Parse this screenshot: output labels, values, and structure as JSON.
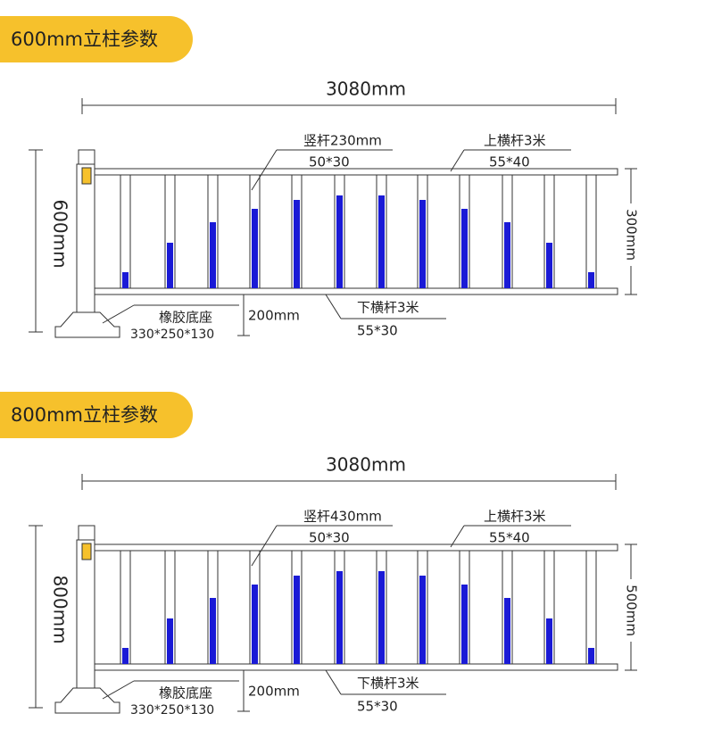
{
  "panels": [
    {
      "header": "600mm立柱参数",
      "width_label": "3080mm",
      "height_label": "600mm",
      "inner_height_label": "300mm",
      "vertical_bar": {
        "label": "竖杆230mm",
        "size": "50*30"
      },
      "top_rail": {
        "label": "上横杆3米",
        "size": "55*40"
      },
      "bottom_rail": {
        "label": "下横杆3米",
        "size": "55*30"
      },
      "base": {
        "label": "橡胶底座",
        "size": "330*250*130"
      },
      "gap_label": "200mm"
    },
    {
      "header": "800mm立柱参数",
      "width_label": "3080mm",
      "height_label": "800mm",
      "inner_height_label": "500mm",
      "vertical_bar": {
        "label": "竖杆430mm",
        "size": "50*30"
      },
      "top_rail": {
        "label": "上横杆3米",
        "size": "55*40"
      },
      "bottom_rail": {
        "label": "下横杆3米",
        "size": "55*30"
      },
      "base": {
        "label": "橡胶底座",
        "size": "330*250*130"
      },
      "gap_label": "200mm"
    }
  ]
}
